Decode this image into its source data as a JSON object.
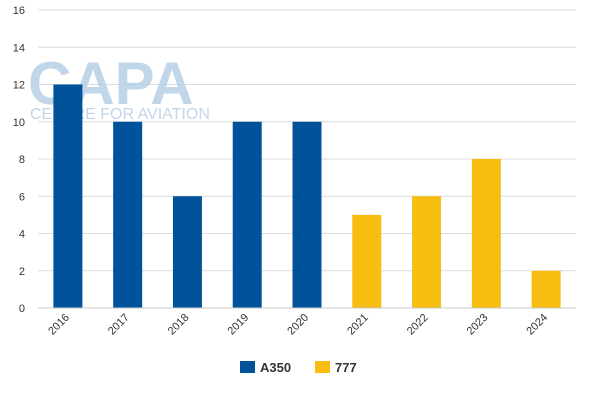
{
  "chart_data": {
    "type": "bar",
    "title": "",
    "xlabel": "",
    "ylabel": "",
    "categories": [
      "2016",
      "2017",
      "2018",
      "2019",
      "2020",
      "2021",
      "2022",
      "2023",
      "2024"
    ],
    "series": [
      {
        "name": "A350",
        "color": "#00529b",
        "values": [
          12,
          10,
          6,
          10,
          10,
          null,
          null,
          null,
          null
        ]
      },
      {
        "name": "777",
        "color": "#f7bd10",
        "values": [
          null,
          null,
          null,
          null,
          null,
          5,
          6,
          8,
          2
        ]
      }
    ],
    "ylim": [
      0,
      16
    ],
    "yticks": [
      "0",
      "2",
      "4",
      "6",
      "8",
      "10",
      "12",
      "14",
      "16"
    ],
    "grid": true,
    "legend_position": "bottom"
  },
  "watermark": {
    "logo_text": "CAPA",
    "tagline": "CENTRE FOR AVIATION",
    "color": "#b7cfe5"
  }
}
